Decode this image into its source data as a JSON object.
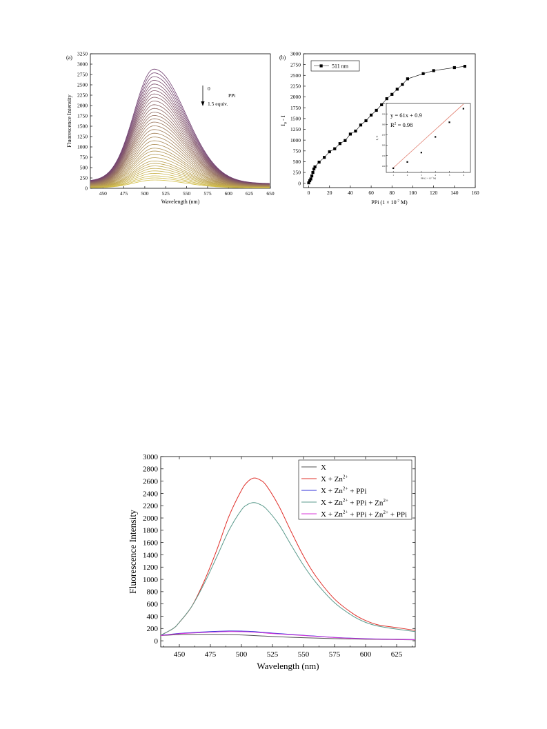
{
  "chart_data": [
    {
      "type": "line",
      "panel_label": "(a)",
      "xlabel": "Wavelength (nm)",
      "ylabel": "Fluorescence Intensity",
      "xlim": [
        435,
        650
      ],
      "ylim": [
        0,
        3250
      ],
      "xticks": [
        450,
        475,
        500,
        525,
        550,
        575,
        600,
        625,
        650
      ],
      "yticks": [
        0,
        250,
        500,
        750,
        1000,
        1250,
        1500,
        1750,
        2000,
        2250,
        2500,
        2750,
        3000,
        3250
      ],
      "annotation": {
        "start": "0",
        "species": "PPi",
        "end": "1.5 equiv."
      },
      "peak_wavelength": 511,
      "curve_model": {
        "baseline_at_435": 0.06,
        "baseline_at_650": 0.04
      },
      "peak_values": [
        2880,
        2790,
        2700,
        2610,
        2520,
        2440,
        2360,
        2280,
        2200,
        2110,
        2020,
        1930,
        1840,
        1760,
        1680,
        1600,
        1510,
        1420,
        1330,
        1240,
        1150,
        1060,
        970,
        900,
        820,
        740,
        660,
        600,
        540,
        480,
        420,
        360,
        300,
        250,
        200
      ],
      "grid": false
    },
    {
      "type": "scatter",
      "panel_label": "(b)",
      "xlabel": "PPi (1 × 10",
      "xlabel_sup": "-7",
      "xlabel_tail": " M)",
      "ylabel": "I",
      "ylabel_sub": "0",
      "ylabel_tail": " - I",
      "xlim": [
        -5,
        160
      ],
      "ylim": [
        -100,
        3000
      ],
      "xticks": [
        0,
        20,
        40,
        60,
        80,
        100,
        120,
        140,
        160
      ],
      "yticks": [
        0,
        250,
        500,
        750,
        1000,
        1250,
        1500,
        1750,
        2000,
        2250,
        2500,
        2750,
        3000
      ],
      "series": [
        {
          "name": "511 nm",
          "x": [
            0,
            1,
            2,
            3,
            4,
            5,
            6,
            10,
            15,
            20,
            25,
            30,
            35,
            40,
            45,
            50,
            55,
            60,
            65,
            70,
            75,
            80,
            85,
            90,
            95,
            110,
            120,
            140,
            150
          ],
          "y": [
            10,
            60,
            100,
            170,
            250,
            330,
            380,
            490,
            600,
            730,
            800,
            920,
            990,
            1140,
            1210,
            1350,
            1450,
            1580,
            1690,
            1820,
            1960,
            2060,
            2180,
            2290,
            2420,
            2540,
            2610,
            2680,
            2710
          ]
        }
      ],
      "legend_position": "top-left",
      "inset": {
        "equation": "y = 61x + 0.9",
        "r2_label": "R",
        "r2_sup": "2",
        "r2_value": " = 0.98",
        "xlabel": "PPi (1 × 10",
        "xlabel_sup": "-7",
        "xlabel_tail": " M)",
        "ylabel": "I₀ - I",
        "xlim": [
          0.5,
          6.5
        ],
        "ylim": [
          70,
          400
        ],
        "xticks": [
          1,
          2,
          3,
          4,
          5,
          6
        ],
        "yticks": [
          100,
          150,
          200,
          250,
          300,
          350,
          400
        ],
        "x": [
          1,
          2,
          3,
          4,
          5,
          6
        ],
        "y": [
          90,
          120,
          165,
          240,
          310,
          375
        ],
        "fit": {
          "slope": 61,
          "intercept": 0.9
        }
      }
    },
    {
      "type": "line",
      "xlabel": "Wavelength (nm)",
      "ylabel": "Fluorescence Intensity",
      "xlim": [
        435,
        640
      ],
      "ylim": [
        -100,
        3000
      ],
      "xticks": [
        450,
        475,
        500,
        525,
        550,
        575,
        600,
        625
      ],
      "yticks": [
        0,
        200,
        400,
        600,
        800,
        1000,
        1200,
        1400,
        1600,
        1800,
        2000,
        2200,
        2400,
        2600,
        2800,
        3000
      ],
      "legend_position": "top-right",
      "series": [
        {
          "name": "X",
          "legend": [
            "X"
          ],
          "color": "#505050",
          "x": [
            435,
            450,
            475,
            490,
            500,
            510,
            525,
            550,
            575,
            600,
            625,
            640
          ],
          "y": [
            85,
            100,
            105,
            102,
            95,
            85,
            70,
            50,
            35,
            25,
            20,
            15
          ]
        },
        {
          "name": "X + Zn2+",
          "legend": [
            "X + Zn",
            "2+"
          ],
          "color": "#e0302a",
          "x": [
            435,
            445,
            450,
            460,
            470,
            480,
            490,
            500,
            505,
            510,
            515,
            520,
            530,
            540,
            550,
            560,
            575,
            590,
            600,
            610,
            625,
            640
          ],
          "y": [
            90,
            200,
            300,
            560,
            970,
            1470,
            2030,
            2450,
            2590,
            2650,
            2620,
            2530,
            2200,
            1780,
            1380,
            1050,
            680,
            440,
            330,
            260,
            215,
            170
          ]
        },
        {
          "name": "X + Zn2+ + PPi",
          "legend": [
            "X + Zn",
            "2+",
            " + PPi"
          ],
          "color": "#3030d8",
          "x": [
            435,
            450,
            475,
            490,
            500,
            510,
            525,
            550,
            575,
            600,
            625,
            640
          ],
          "y": [
            90,
            120,
            150,
            160,
            158,
            150,
            125,
            90,
            55,
            35,
            25,
            20
          ]
        },
        {
          "name": "X + Zn2+ + PPi + Zn2+",
          "legend": [
            "X + Zn",
            "2+",
            " + PPi + Zn",
            "2+",
            ""
          ],
          "color": "#5a9a8c",
          "x": [
            435,
            445,
            450,
            460,
            470,
            480,
            490,
            500,
            505,
            510,
            515,
            520,
            530,
            540,
            550,
            560,
            575,
            590,
            600,
            610,
            625,
            640
          ],
          "y": [
            90,
            200,
            300,
            560,
            930,
            1360,
            1800,
            2130,
            2220,
            2250,
            2220,
            2150,
            1900,
            1560,
            1230,
            950,
            620,
            400,
            300,
            240,
            190,
            150
          ]
        },
        {
          "name": "X + Zn2+ + PPi + Zn2+ + PPi",
          "legend": [
            "X + Zn",
            "2+",
            " + PPi + Zn",
            "2+",
            " + PPi"
          ],
          "color": "#d93ad9",
          "x": [
            435,
            450,
            475,
            490,
            500,
            510,
            525,
            550,
            575,
            600,
            625,
            640
          ],
          "y": [
            85,
            115,
            140,
            150,
            148,
            140,
            118,
            85,
            52,
            32,
            22,
            18
          ]
        }
      ],
      "grid": false
    }
  ]
}
